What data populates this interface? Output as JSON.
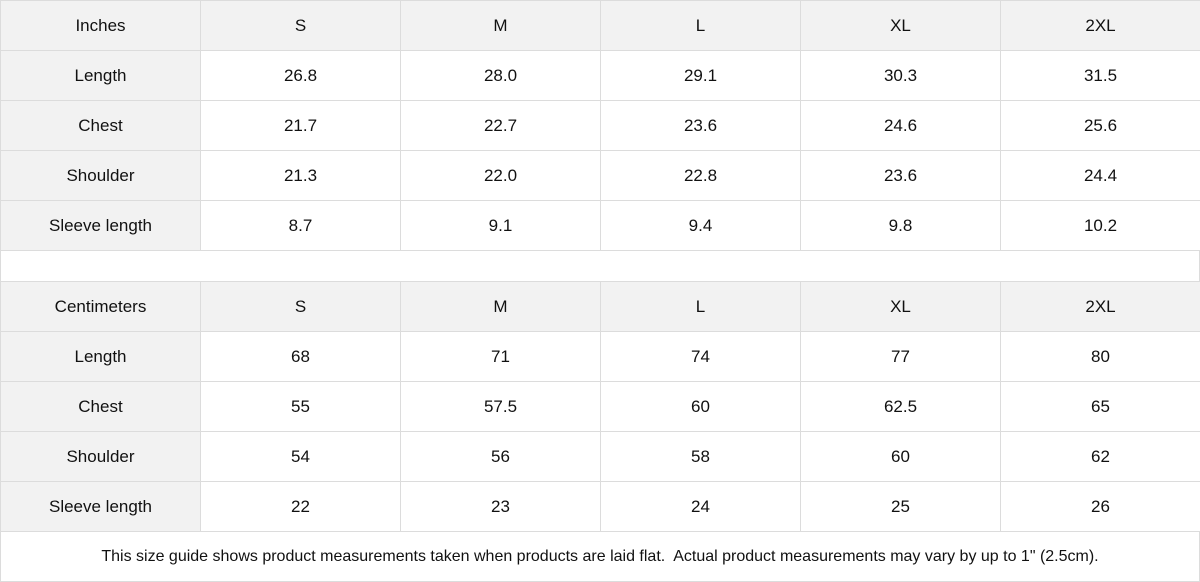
{
  "tables": [
    {
      "unit": "Inches",
      "sizes": [
        "S",
        "M",
        "L",
        "XL",
        "2XL"
      ],
      "rows": [
        {
          "label": "Length",
          "values": [
            "26.8",
            "28.0",
            "29.1",
            "30.3",
            "31.5"
          ]
        },
        {
          "label": "Chest",
          "values": [
            "21.7",
            "22.7",
            "23.6",
            "24.6",
            "25.6"
          ]
        },
        {
          "label": "Shoulder",
          "values": [
            "21.3",
            "22.0",
            "22.8",
            "23.6",
            "24.4"
          ]
        },
        {
          "label": "Sleeve length",
          "values": [
            "8.7",
            "9.1",
            "9.4",
            "9.8",
            "10.2"
          ]
        }
      ]
    },
    {
      "unit": "Centimeters",
      "sizes": [
        "S",
        "M",
        "L",
        "XL",
        "2XL"
      ],
      "rows": [
        {
          "label": "Length",
          "values": [
            "68",
            "71",
            "74",
            "77",
            "80"
          ]
        },
        {
          "label": "Chest",
          "values": [
            "55",
            "57.5",
            "60",
            "62.5",
            "65"
          ]
        },
        {
          "label": "Shoulder",
          "values": [
            "54",
            "56",
            "58",
            "60",
            "62"
          ]
        },
        {
          "label": "Sleeve length",
          "values": [
            "22",
            "23",
            "24",
            "25",
            "26"
          ]
        }
      ]
    }
  ],
  "note": "This size guide shows product measurements taken when products are laid flat.  Actual product measurements may vary by up to 1\" (2.5cm).",
  "colors": {
    "header_bg": "#f2f2f2",
    "border": "#dcdcdc"
  }
}
